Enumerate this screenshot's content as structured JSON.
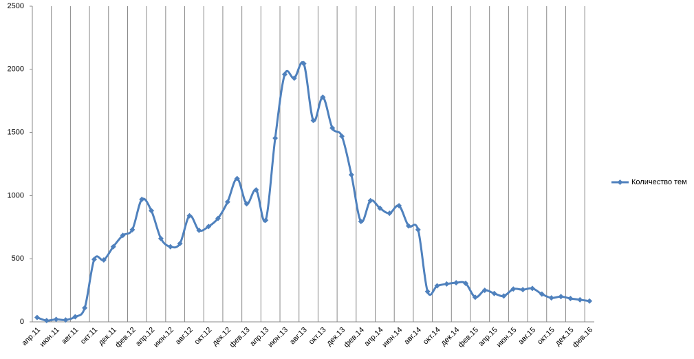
{
  "chart_data": {
    "type": "line",
    "categories": [
      "апр.11",
      null,
      "июн.11",
      null,
      "авг.11",
      null,
      "окт.11",
      null,
      "дек.11",
      null,
      "фев.12",
      null,
      "апр.12",
      null,
      "июн.12",
      null,
      "авг.12",
      null,
      "окт.12",
      null,
      "дек.12",
      null,
      "фев.13",
      null,
      "апр.13",
      null,
      "июн.13",
      null,
      "авг.13",
      null,
      "окт.13",
      null,
      "дек.13",
      null,
      "фев.14",
      null,
      "апр.14",
      null,
      "июн.14",
      null,
      "авг.14",
      null,
      "окт.14",
      null,
      "дек.14",
      null,
      "фев.15",
      null,
      "апр.15",
      null,
      "июн.15",
      null,
      "авг.15",
      null,
      "окт.15",
      null,
      "дек.15",
      null,
      "фев.16"
    ],
    "series": [
      {
        "name": "Количество тем",
        "color": "#4f81bd",
        "values": [
          35,
          10,
          20,
          15,
          40,
          110,
          495,
          490,
          595,
          685,
          730,
          970,
          880,
          660,
          595,
          620,
          840,
          725,
          755,
          820,
          950,
          1135,
          935,
          1045,
          805,
          1455,
          1960,
          1930,
          2045,
          1595,
          1780,
          1535,
          1470,
          1165,
          795,
          960,
          900,
          860,
          920,
          760,
          730,
          240,
          285,
          300,
          310,
          305,
          195,
          250,
          225,
          205,
          260,
          255,
          265,
          220,
          190,
          200,
          185,
          175,
          165
        ]
      }
    ],
    "ylim": [
      0,
      2500
    ],
    "yticks": [
      0,
      500,
      1000,
      1500,
      2000,
      2500
    ],
    "legend": "right",
    "grid": "x"
  }
}
